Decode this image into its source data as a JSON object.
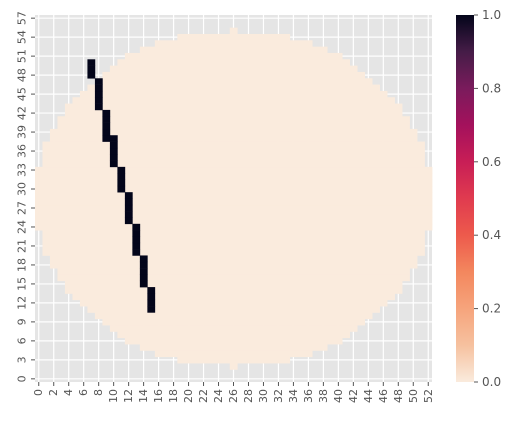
{
  "chart_data": {
    "type": "heatmap",
    "title": "",
    "xlabel": "",
    "ylabel": "",
    "n_cols": 53,
    "n_rows": 58,
    "x_ticks": [
      0,
      2,
      4,
      6,
      8,
      10,
      12,
      14,
      16,
      18,
      20,
      22,
      24,
      26,
      28,
      30,
      32,
      34,
      36,
      38,
      40,
      42,
      44,
      46,
      48,
      50,
      52
    ],
    "y_ticks": [
      0,
      3,
      6,
      9,
      12,
      15,
      18,
      21,
      24,
      27,
      30,
      33,
      36,
      39,
      42,
      45,
      48,
      51,
      54,
      57
    ],
    "y_origin": "bottom",
    "mask": {
      "shape": "circle",
      "center": [
        26,
        28.5
      ],
      "radius": 26.5,
      "note_value": "cells outside the circle are masked (no value shown)"
    },
    "background_value": 0,
    "line_cells": [
      {
        "x": 7,
        "y": [
          48,
          49,
          50
        ]
      },
      {
        "x": 8,
        "y": [
          43,
          44,
          45,
          46,
          47
        ]
      },
      {
        "x": 9,
        "y": [
          38,
          39,
          40,
          41,
          42
        ]
      },
      {
        "x": 10,
        "y": [
          34,
          35,
          36,
          37,
          38
        ]
      },
      {
        "x": 11,
        "y": [
          30,
          31,
          32,
          33
        ]
      },
      {
        "x": 12,
        "y": [
          25,
          26,
          27,
          28,
          29
        ]
      },
      {
        "x": 13,
        "y": [
          20,
          21,
          22,
          23,
          24
        ]
      },
      {
        "x": 14,
        "y": [
          15,
          16,
          17,
          18,
          19
        ]
      },
      {
        "x": 15,
        "y": [
          11,
          12,
          13,
          14
        ]
      }
    ],
    "line_value": 1,
    "colorbar": {
      "min": 0.0,
      "max": 1.0,
      "ticks": [
        "0.0",
        "0.2",
        "0.4",
        "0.6",
        "0.8",
        "1.0"
      ],
      "colormap": "rocket_r"
    },
    "grid": true,
    "colors": {
      "background": "#e5e5e5",
      "grid": "#ffffff",
      "low": "#faebdd",
      "high": "#03051a"
    }
  }
}
